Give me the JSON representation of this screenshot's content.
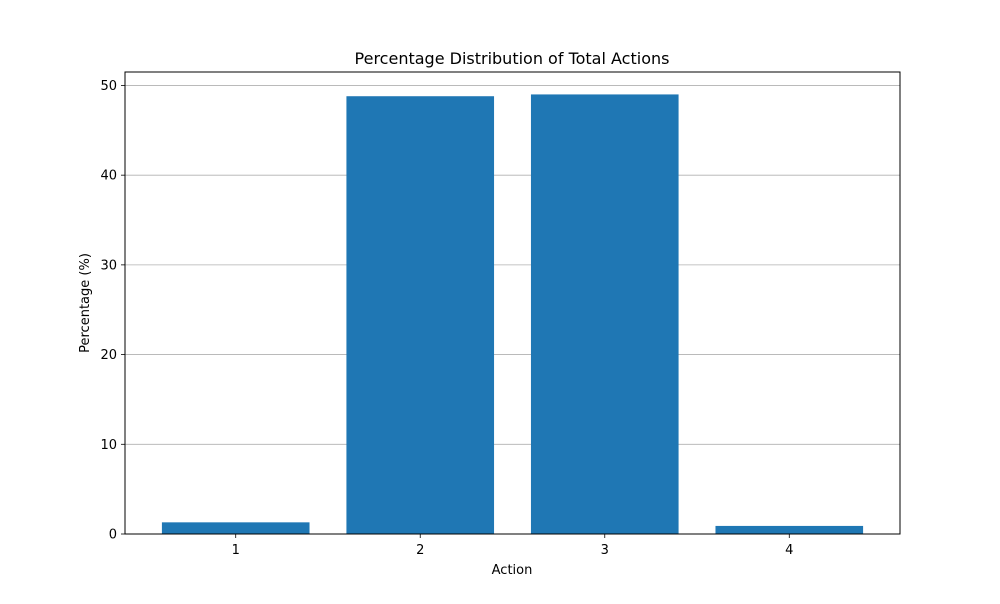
{
  "chart_data": {
    "type": "bar",
    "title": "Percentage Distribution of Total Actions",
    "xlabel": "Action",
    "ylabel": "Percentage (%)",
    "categories": [
      "1",
      "2",
      "3",
      "4"
    ],
    "values": [
      1.3,
      48.8,
      49.0,
      0.9
    ],
    "ylim": [
      0,
      51.5
    ],
    "yticks": [
      0,
      10,
      20,
      30,
      40,
      50
    ],
    "grid": {
      "y": true,
      "x": false
    },
    "bar_color": "#1f77b4",
    "grid_color": "#b0b0b0"
  }
}
